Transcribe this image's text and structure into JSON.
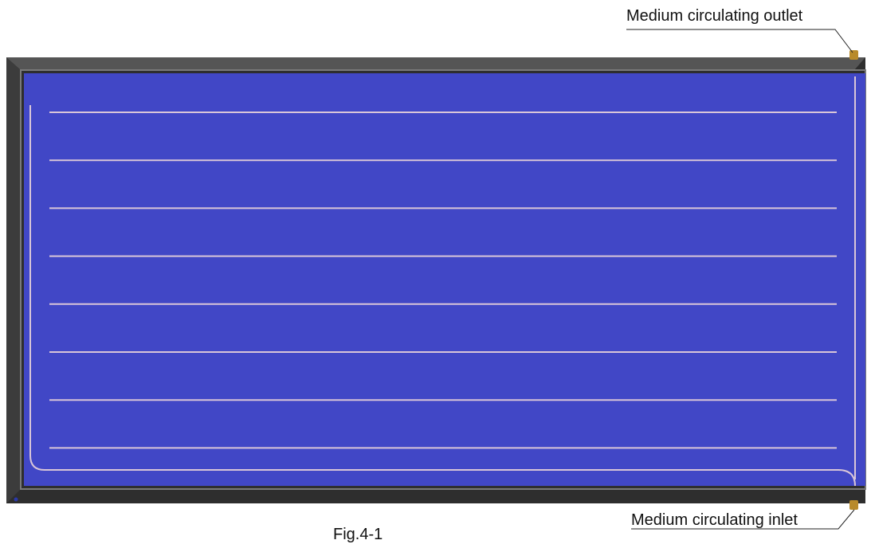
{
  "labels": {
    "outlet": "Medium circulating outlet",
    "inlet": "Medium circulating inlet",
    "caption": "Fig.4-1"
  },
  "diagram": {
    "type": "flat-plate solar collector",
    "riser_tube_count": 8,
    "colors": {
      "frame": "#2e2e2e",
      "frame_highlight": "#6e6e6e",
      "absorber": "#4147c6",
      "tubes": "#d9c6d8",
      "fitting": "#b88a2a"
    }
  }
}
